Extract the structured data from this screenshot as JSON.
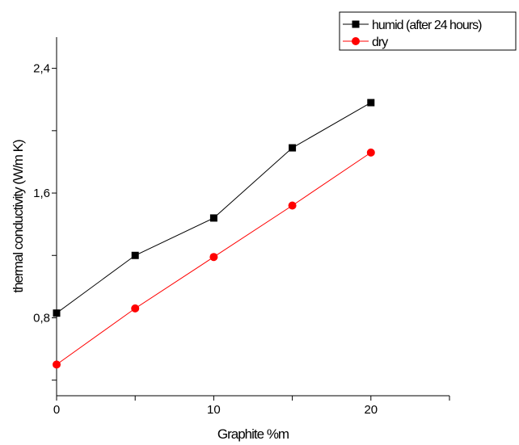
{
  "chart_data": {
    "type": "line",
    "xlabel": "Graphite %m",
    "ylabel": "thermal conductivity (W/m K)",
    "xlim": [
      0,
      25
    ],
    "ylim": [
      0.3,
      2.6
    ],
    "x_ticks": [
      0,
      5,
      10,
      15,
      20,
      25
    ],
    "x_tick_labels": [
      "0",
      "",
      "10",
      "",
      "20",
      ""
    ],
    "y_ticks": [
      0.4,
      0.8,
      1.2,
      1.6,
      2.0,
      2.4
    ],
    "y_tick_labels": [
      "",
      "0,8",
      "",
      "1,6",
      "",
      "2,4"
    ],
    "grid": false,
    "legend_position": "top-right",
    "x": [
      0,
      5,
      10,
      15,
      20
    ],
    "series": [
      {
        "name": "humid (after 24 hours)",
        "marker": "square",
        "color": "#000000",
        "values": [
          0.83,
          1.2,
          1.44,
          1.89,
          2.18
        ]
      },
      {
        "name": "dry",
        "marker": "circle",
        "color": "#ff0000",
        "values": [
          0.5,
          0.86,
          1.19,
          1.52,
          1.86
        ]
      }
    ]
  }
}
